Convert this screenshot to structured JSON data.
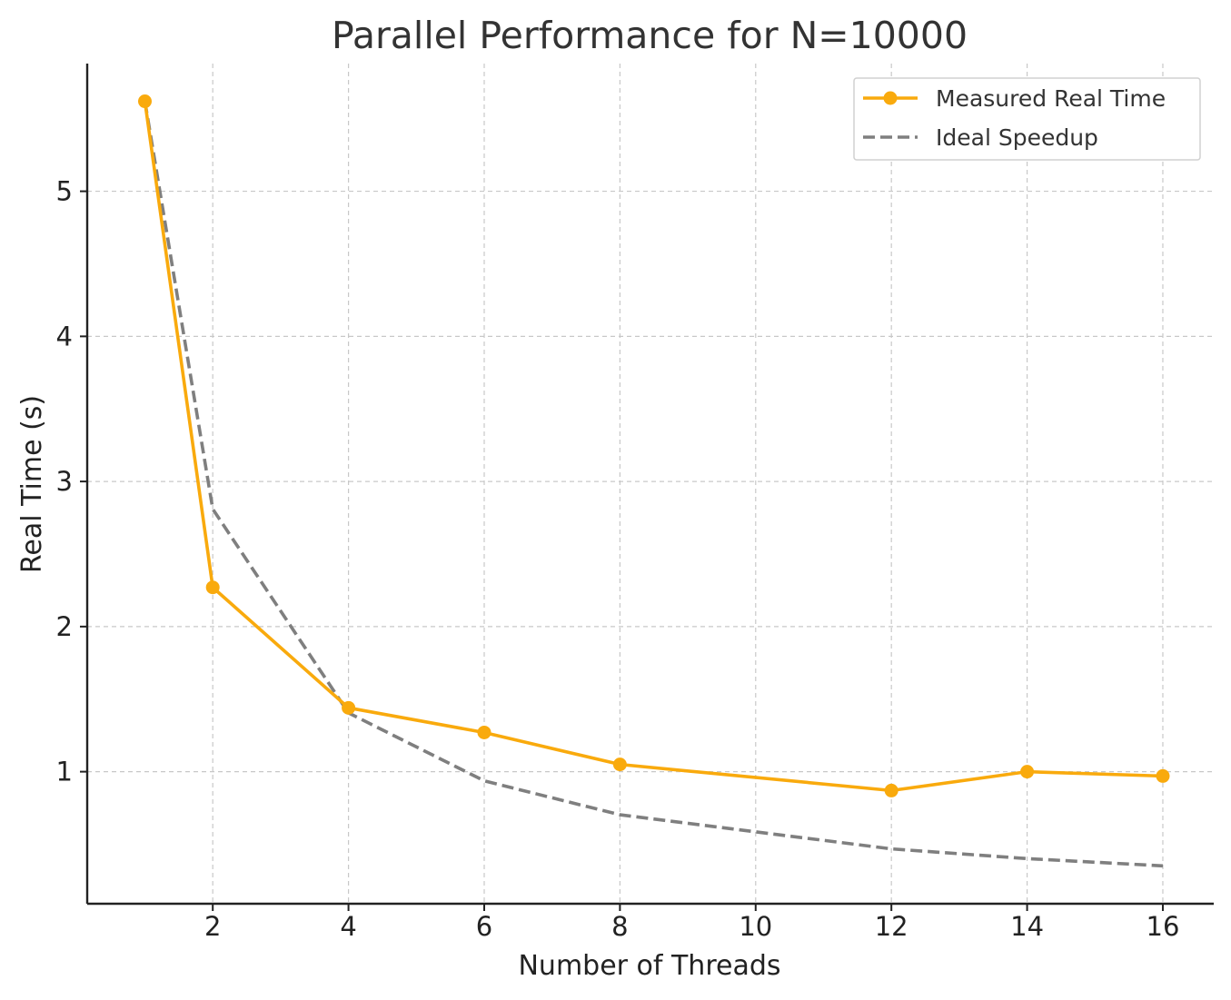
{
  "chart_data": {
    "type": "line",
    "title": "Parallel Performance for N=10000",
    "xlabel": "Number of Threads",
    "ylabel": "Real Time (s)",
    "xlim": [
      0.15,
      16.75
    ],
    "ylim": [
      0.09,
      5.88
    ],
    "xticks": [
      2,
      4,
      6,
      8,
      10,
      12,
      14,
      16
    ],
    "yticks": [
      1,
      2,
      3,
      4,
      5
    ],
    "grid": true,
    "legend_position": "top-right",
    "series": [
      {
        "name": "Measured Real Time",
        "style": "solid",
        "marker": "circle",
        "color": "#F9AA0D",
        "x": [
          1,
          2,
          4,
          6,
          8,
          12,
          14,
          16
        ],
        "y": [
          5.62,
          2.27,
          1.44,
          1.27,
          1.05,
          0.87,
          1.0,
          0.97
        ]
      },
      {
        "name": "Ideal Speedup",
        "style": "dashed",
        "marker": "none",
        "color": "#7F7F7F",
        "x": [
          1,
          2,
          4,
          6,
          8,
          12,
          14,
          16
        ],
        "y": [
          5.62,
          2.81,
          1.405,
          0.937,
          0.703,
          0.468,
          0.401,
          0.351
        ]
      }
    ]
  }
}
